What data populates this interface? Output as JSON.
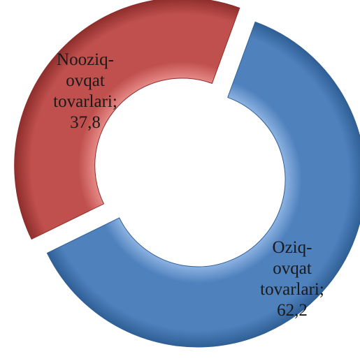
{
  "chart_data": {
    "type": "pie",
    "variant": "doughnut",
    "title": "",
    "slices": [
      {
        "label_lines": [
          "Oziq-",
          "ovqat",
          "tovarlari;",
          "62,2"
        ],
        "value": 62.2,
        "color": "#4f81bd",
        "color_light": "#8db3e2",
        "color_dark": "#2f5f95"
      },
      {
        "label_lines": [
          "Nooziq-",
          "ovqat",
          "tovarlari;",
          "37,8"
        ],
        "value": 37.8,
        "color": "#c0504d",
        "color_light": "#e68a87",
        "color_dark": "#8e2e2c",
        "exploded": true
      }
    ],
    "legend": "none"
  }
}
